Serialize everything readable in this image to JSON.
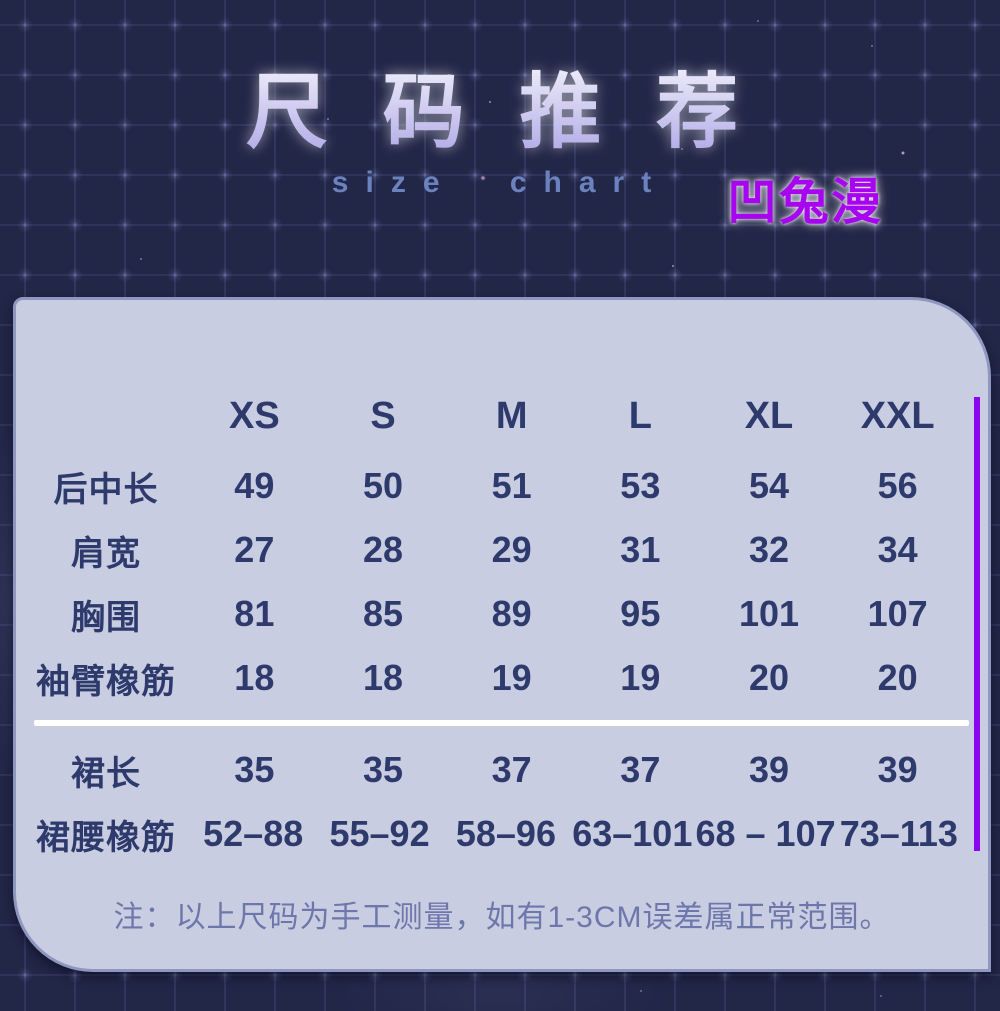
{
  "page": {
    "title": "尺 码 推 荐",
    "subtitle": "size chart",
    "brand": "凹兔漫"
  },
  "table": {
    "columns": [
      "XS",
      "S",
      "M",
      "L",
      "XL",
      "XXL"
    ],
    "rows_above_divider": [
      {
        "label": "后中长",
        "values": [
          "49",
          "50",
          "51",
          "53",
          "54",
          "56"
        ]
      },
      {
        "label": "肩宽",
        "values": [
          "27",
          "28",
          "29",
          "31",
          "32",
          "34"
        ]
      },
      {
        "label": "胸围",
        "values": [
          "81",
          "85",
          "89",
          "95",
          "101",
          "107"
        ]
      },
      {
        "label": "袖臂橡筋",
        "values": [
          "18",
          "18",
          "19",
          "19",
          "20",
          "20"
        ]
      }
    ],
    "rows_below_divider": [
      {
        "label": "裙长",
        "values": [
          "35",
          "35",
          "37",
          "37",
          "39",
          "39"
        ]
      },
      {
        "label": "裙腰橡筋",
        "values": [
          "52–88",
          "55–92",
          "58–96",
          "63–101",
          "68 – 107",
          "73–113"
        ]
      }
    ],
    "note": "注：以上尺码为手工测量，如有1-3CM误差属正常范围。"
  },
  "chart_data": {
    "type": "table",
    "title": "尺码推荐",
    "subtitle": "size chart",
    "columns": [
      "",
      "XS",
      "S",
      "M",
      "L",
      "XL",
      "XXL"
    ],
    "rows": [
      [
        "后中长",
        49,
        50,
        51,
        53,
        54,
        56
      ],
      [
        "肩宽",
        27,
        28,
        29,
        31,
        32,
        34
      ],
      [
        "胸围",
        81,
        85,
        89,
        95,
        101,
        107
      ],
      [
        "袖臂橡筋",
        18,
        18,
        19,
        19,
        20,
        20
      ],
      [
        "裙长",
        35,
        35,
        37,
        37,
        39,
        39
      ],
      [
        "裙腰橡筋",
        "52–88",
        "55–92",
        "58–96",
        "63–101",
        "68 – 107",
        "73–113"
      ]
    ],
    "note": "注：以上尺码为手工测量，如有1-3CM误差属正常范围。"
  },
  "colors": {
    "background": "#222647",
    "panel": "#c9cde1",
    "panel_border": "#8d97c0",
    "table_text": "#2e3a6b",
    "note_text": "#6d77ab",
    "accent_line": "#8a05f0",
    "brand": "#a705ef",
    "subtitle": "#6c82be",
    "title_gradient_top": "#ffffff",
    "title_gradient_bottom": "#b5aee8"
  }
}
